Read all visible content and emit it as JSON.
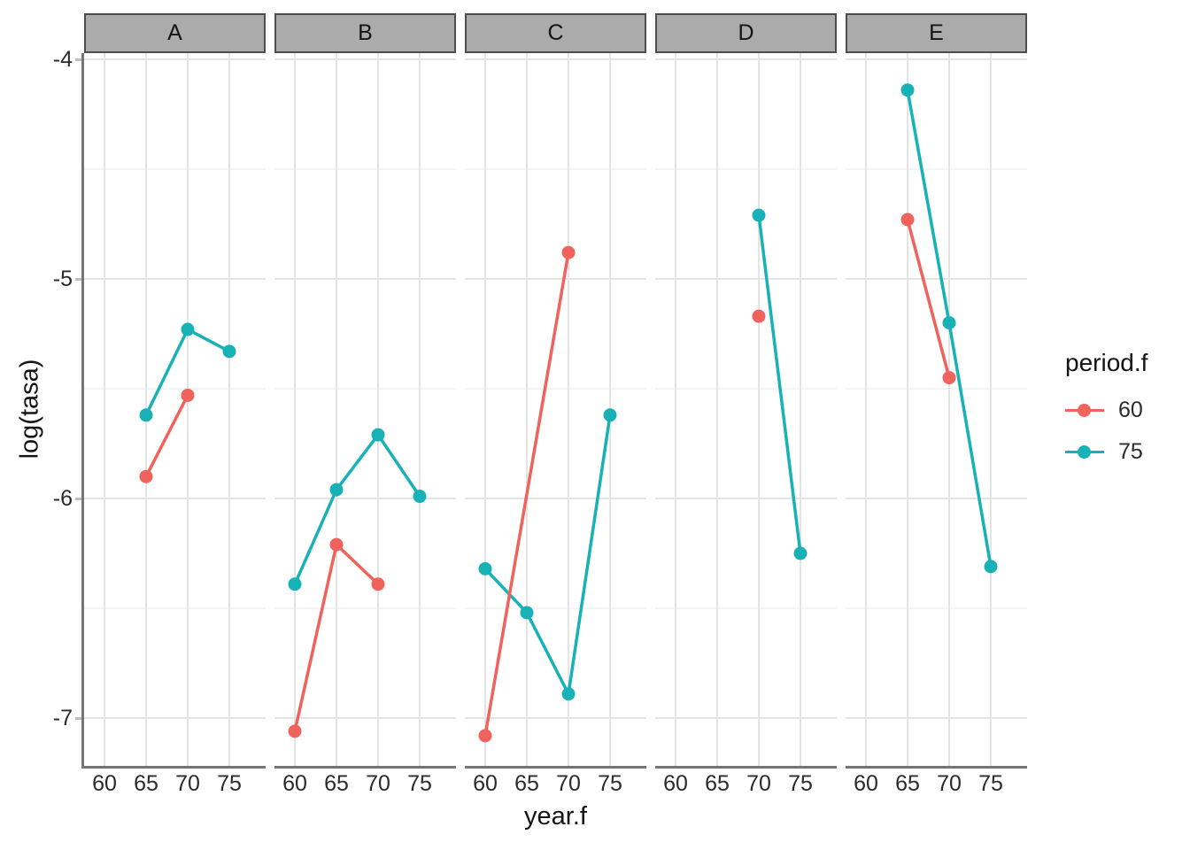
{
  "chart_data": {
    "type": "line",
    "title": "",
    "xlabel": "year.f",
    "ylabel": "log(tasa)",
    "x_ticks": [
      60,
      65,
      70,
      75
    ],
    "y_ticks": [
      -4,
      -5,
      -6,
      -7
    ],
    "y_minor_ticks": [
      -4.5,
      -5.5,
      -6.5
    ],
    "ylim": [
      -7.23,
      -3.97
    ],
    "grid": true,
    "facet_variable_values": [
      "A",
      "B",
      "C",
      "D",
      "E"
    ],
    "facets": [
      {
        "label": "A",
        "series": [
          {
            "name": "60",
            "points": [
              [
                65,
                -5.9
              ],
              [
                70,
                -5.53
              ]
            ]
          },
          {
            "name": "75",
            "points": [
              [
                65,
                -5.62
              ],
              [
                70,
                -5.23
              ],
              [
                75,
                -5.33
              ]
            ]
          }
        ]
      },
      {
        "label": "B",
        "series": [
          {
            "name": "60",
            "points": [
              [
                60,
                -7.06
              ],
              [
                65,
                -6.21
              ],
              [
                70,
                -6.39
              ]
            ]
          },
          {
            "name": "75",
            "points": [
              [
                60,
                -6.39
              ],
              [
                65,
                -5.96
              ],
              [
                70,
                -5.71
              ],
              [
                75,
                -5.99
              ]
            ]
          }
        ]
      },
      {
        "label": "C",
        "series": [
          {
            "name": "60",
            "points": [
              [
                60,
                -7.08
              ],
              [
                70,
                -4.88
              ]
            ]
          },
          {
            "name": "75",
            "points": [
              [
                60,
                -6.32
              ],
              [
                65,
                -6.52
              ],
              [
                70,
                -6.89
              ],
              [
                75,
                -5.62
              ]
            ]
          }
        ]
      },
      {
        "label": "D",
        "series": [
          {
            "name": "60",
            "points": [
              [
                70,
                -5.17
              ]
            ]
          },
          {
            "name": "75",
            "points": [
              [
                70,
                -4.71
              ],
              [
                75,
                -6.25
              ]
            ]
          }
        ]
      },
      {
        "label": "E",
        "series": [
          {
            "name": "60",
            "points": [
              [
                65,
                -4.73
              ],
              [
                70,
                -5.45
              ]
            ]
          },
          {
            "name": "75",
            "points": [
              [
                65,
                -4.14
              ],
              [
                70,
                -5.2
              ],
              [
                75,
                -6.31
              ]
            ]
          }
        ]
      }
    ],
    "legend": {
      "title": "period.f",
      "position": "right",
      "entries": [
        {
          "label": "60",
          "color": "#f0625c"
        },
        {
          "label": "75",
          "color": "#18b2b6"
        }
      ]
    },
    "colors": {
      "60": "#f0625c",
      "75": "#18b2b6",
      "strip_fill": "#ababab",
      "strip_border": "#4d4d4d",
      "axis_line": "#757575",
      "grid_major": "#e4e4e4",
      "grid_minor": "#f0f0f0"
    }
  }
}
